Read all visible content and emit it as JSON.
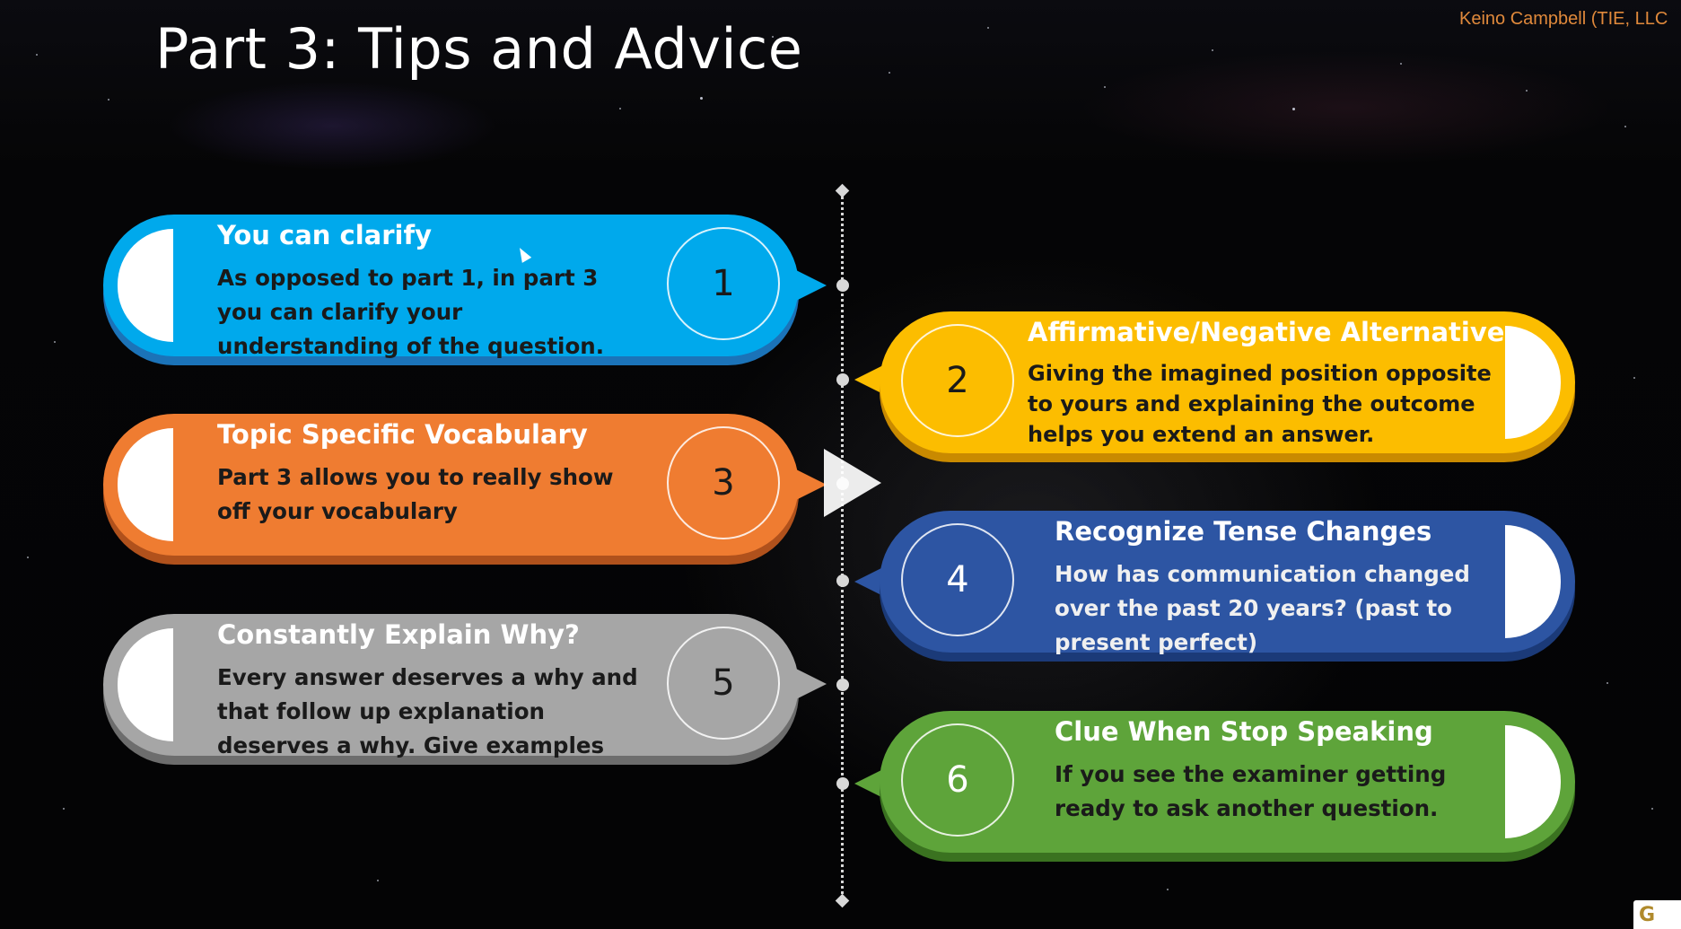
{
  "slide": {
    "title": "Part 3: Tips and Advice",
    "author": "Keino Campbell (TIE, LLC"
  },
  "tips": [
    {
      "number": "1",
      "heading": "You can clarify",
      "text": "As opposed to part 1, in part 3 you can clarify your understanding of the question.",
      "color": "#00a9ec",
      "shadow_color": "#1b73b8",
      "side": "left"
    },
    {
      "number": "2",
      "heading": "Affirmative/Negative Alternative",
      "text": "Giving the imagined position opposite to yours and explaining the outcome helps you extend an answer.",
      "color": "#fcbd00",
      "shadow_color": "#c98a00",
      "side": "right"
    },
    {
      "number": "3",
      "heading": "Topic Specific Vocabulary",
      "text": "Part 3 allows you to really show off your vocabulary",
      "color": "#ef7c31",
      "shadow_color": "#b0511c",
      "side": "left"
    },
    {
      "number": "4",
      "heading": "Recognize Tense Changes",
      "text": "How has communication changed over the past 20 years? (past to present perfect)",
      "color": "#2d55a3",
      "shadow_color": "#1b3a78",
      "side": "right"
    },
    {
      "number": "5",
      "heading": "Constantly Explain Why?",
      "text": "Every answer deserves a why and that follow up explanation deserves a why. Give examples",
      "color": "#a6a6a6",
      "shadow_color": "#6d6d6d",
      "side": "left"
    },
    {
      "number": "6",
      "heading": "Clue When Stop Speaking",
      "text": "If you see the examiner getting ready to ask another question.",
      "color": "#5ea43a",
      "shadow_color": "#3a7220",
      "side": "right"
    }
  ],
  "icons": {
    "play": "play-icon",
    "cursor": "mouse-cursor-icon",
    "logo": "corner-logo"
  },
  "logo": {
    "text": "G"
  }
}
